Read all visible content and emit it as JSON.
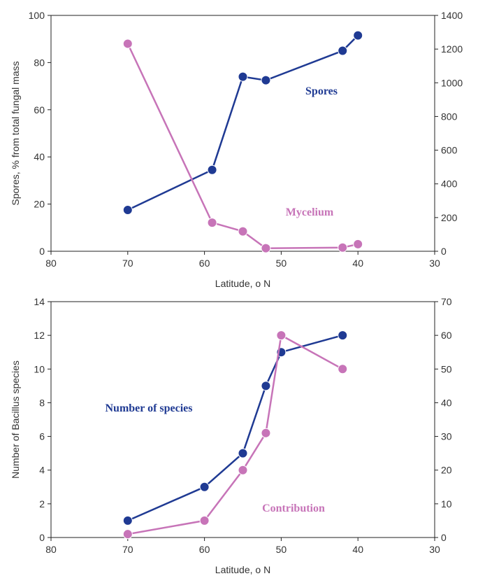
{
  "chart_data": [
    {
      "type": "line",
      "xlabel": "Latitude, o N",
      "ylabel": "Spores, % from total fungal mass",
      "xlim": [
        80,
        30
      ],
      "ylim": [
        0,
        100
      ],
      "y2lim": [
        0,
        1400
      ],
      "x_ticks": [
        "80",
        "70",
        "60",
        "50",
        "40",
        "30"
      ],
      "y_ticks": [
        "0",
        "20",
        "40",
        "60",
        "80",
        "100"
      ],
      "y2_ticks": [
        "0",
        "200",
        "400",
        "600",
        "800",
        "1000",
        "1200",
        "1400"
      ],
      "series": [
        {
          "name": "Spores",
          "axis": "left",
          "color": "#1f3a93",
          "points": [
            {
              "x": 70,
              "y": 17.5
            },
            {
              "x": 59,
              "y": 34.5
            },
            {
              "x": 55,
              "y": 74
            },
            {
              "x": 52,
              "y": 72.5
            },
            {
              "x": 42,
              "y": 85
            },
            {
              "x": 40,
              "y": 91.5
            }
          ]
        },
        {
          "name": "Mycelium",
          "axis": "right",
          "color": "#c774b8",
          "points": [
            {
              "x": 70,
              "y": 1232
            },
            {
              "x": 59,
              "y": 170
            },
            {
              "x": 55,
              "y": 118
            },
            {
              "x": 52,
              "y": 18
            },
            {
              "x": 42,
              "y": 22
            },
            {
              "x": 40,
              "y": 42
            }
          ]
        }
      ]
    },
    {
      "type": "line",
      "xlabel": "Latitude, o N",
      "ylabel": "Number of Bacillus species",
      "xlim": [
        80,
        30
      ],
      "ylim": [
        0,
        14
      ],
      "y2lim": [
        0,
        70
      ],
      "x_ticks": [
        "80",
        "70",
        "60",
        "50",
        "40",
        "30"
      ],
      "y_ticks": [
        "0",
        "2",
        "4",
        "6",
        "8",
        "10",
        "12",
        "14"
      ],
      "y2_ticks": [
        "0",
        "10",
        "20",
        "30",
        "40",
        "50",
        "60",
        "70"
      ],
      "series": [
        {
          "name": "Number of species",
          "axis": "left",
          "color": "#1f3a93",
          "points": [
            {
              "x": 70,
              "y": 1
            },
            {
              "x": 60,
              "y": 3
            },
            {
              "x": 55,
              "y": 5
            },
            {
              "x": 52,
              "y": 9
            },
            {
              "x": 50,
              "y": 11
            },
            {
              "x": 42,
              "y": 12
            }
          ]
        },
        {
          "name": "Contribution",
          "axis": "right",
          "color": "#c774b8",
          "points": [
            {
              "x": 70,
              "y": 1
            },
            {
              "x": 60,
              "y": 5
            },
            {
              "x": 55,
              "y": 20
            },
            {
              "x": 52,
              "y": 31
            },
            {
              "x": 50,
              "y": 60
            },
            {
              "x": 42,
              "y": 50
            }
          ]
        }
      ]
    }
  ]
}
